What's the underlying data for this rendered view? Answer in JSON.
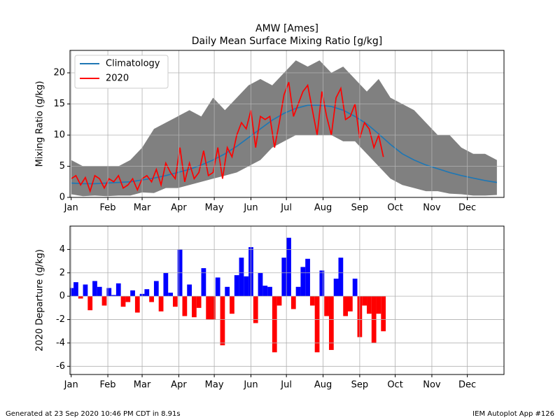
{
  "chart_data": [
    {
      "type": "line",
      "title": "AMW [Ames]",
      "subtitle": "Daily Mean Surface Mixing Ratio [g/kg]",
      "ylabel": "Mixing Ratio (g/kg)",
      "xlim": [
        0,
        367
      ],
      "ylim": [
        0,
        23.6
      ],
      "yticks": [
        0,
        5,
        10,
        15,
        20
      ],
      "xticks": [
        {
          "value": 1,
          "label": "Jan"
        },
        {
          "value": 32,
          "label": "Feb"
        },
        {
          "value": 61,
          "label": "Mar"
        },
        {
          "value": 92,
          "label": "Apr"
        },
        {
          "value": 122,
          "label": "May"
        },
        {
          "value": 153,
          "label": "Jun"
        },
        {
          "value": 183,
          "label": "Jul"
        },
        {
          "value": 214,
          "label": "Aug"
        },
        {
          "value": 245,
          "label": "Sep"
        },
        {
          "value": 275,
          "label": "Oct"
        },
        {
          "value": 306,
          "label": "Nov"
        },
        {
          "value": 336,
          "label": "Dec"
        }
      ],
      "grid": true,
      "legend": "upper left",
      "band": {
        "color": "#808080",
        "x": [
          1,
          11,
          21,
          31,
          41,
          51,
          61,
          71,
          81,
          91,
          101,
          111,
          121,
          131,
          141,
          151,
          161,
          171,
          181,
          191,
          201,
          211,
          221,
          231,
          241,
          251,
          261,
          271,
          281,
          291,
          301,
          311,
          321,
          331,
          341,
          351,
          361
        ],
        "high": [
          6,
          5,
          5,
          5,
          5,
          6,
          8,
          11,
          12,
          13,
          14,
          13,
          16,
          14,
          16,
          18,
          19,
          18,
          20,
          22,
          21,
          22,
          20,
          21,
          19,
          17,
          19,
          16,
          15,
          14,
          12,
          10,
          10,
          8,
          7,
          7,
          6
        ],
        "low": [
          0.5,
          0.2,
          0.3,
          0.2,
          0.3,
          0.3,
          0.8,
          0.7,
          1.5,
          1.5,
          2,
          2.5,
          3,
          3.5,
          4,
          5,
          6,
          8,
          9,
          10,
          10,
          10,
          10,
          9,
          9,
          7,
          5,
          3,
          2,
          1.5,
          1,
          1,
          0.6,
          0.5,
          0.3,
          0.3,
          0.4
        ]
      },
      "series": [
        {
          "name": "Climatology",
          "color": "#1f77b4",
          "x": [
            1,
            11,
            21,
            31,
            41,
            51,
            61,
            71,
            81,
            91,
            101,
            111,
            121,
            131,
            141,
            151,
            161,
            171,
            181,
            191,
            201,
            211,
            221,
            231,
            241,
            251,
            261,
            271,
            281,
            291,
            301,
            311,
            321,
            331,
            341,
            351,
            361
          ],
          "values": [
            2.3,
            2.2,
            2.2,
            2.3,
            2.4,
            2.5,
            2.8,
            3.1,
            3.5,
            4.0,
            4.5,
            5.2,
            6.0,
            7.0,
            8.2,
            9.6,
            11.0,
            12.4,
            13.5,
            14.3,
            14.8,
            14.8,
            14.6,
            14.0,
            13.0,
            11.8,
            10.2,
            8.5,
            7.0,
            6.0,
            5.2,
            4.6,
            4.0,
            3.5,
            3.1,
            2.7,
            2.4
          ]
        },
        {
          "name": "2020",
          "color": "#ff0000",
          "x": [
            1,
            5,
            9,
            13,
            17,
            21,
            25,
            29,
            33,
            37,
            41,
            45,
            49,
            53,
            57,
            61,
            65,
            69,
            73,
            77,
            81,
            85,
            89,
            93,
            97,
            101,
            105,
            109,
            113,
            117,
            121,
            125,
            129,
            133,
            137,
            141,
            145,
            149,
            153,
            157,
            161,
            165,
            169,
            173,
            177,
            181,
            185,
            189,
            193,
            197,
            201,
            205,
            209,
            213,
            217,
            221,
            225,
            229,
            233,
            237,
            241,
            245,
            249,
            253,
            257,
            261,
            265
          ],
          "values": [
            3.0,
            3.5,
            2.0,
            3.2,
            1.0,
            3.5,
            3.0,
            1.5,
            3.0,
            2.5,
            3.5,
            1.5,
            2.0,
            3.0,
            1.2,
            3.0,
            3.5,
            2.5,
            4.5,
            2.0,
            5.5,
            4.0,
            3.0,
            8.0,
            2.5,
            5.5,
            3.0,
            4.0,
            7.5,
            3.5,
            4.0,
            8.0,
            3.0,
            8.0,
            6.5,
            10.0,
            12.0,
            11.0,
            14.0,
            8.0,
            13.0,
            12.5,
            13.0,
            8.0,
            12.0,
            16.5,
            18.5,
            13.0,
            15.0,
            17.0,
            18.0,
            14.0,
            10.0,
            17.0,
            13.0,
            10.0,
            16.0,
            17.5,
            12.5,
            13.0,
            15.0,
            9.5,
            12.0,
            11.0,
            8.0,
            10.0,
            6.5
          ]
        }
      ]
    },
    {
      "type": "bar",
      "ylabel": "2020 Departure (g/kg)",
      "xlim": [
        0,
        367
      ],
      "ylim": [
        -6.7,
        6
      ],
      "yticks": [
        -6,
        -4,
        -2,
        0,
        2,
        4
      ],
      "xticks": [
        {
          "value": 1,
          "label": "Jan"
        },
        {
          "value": 32,
          "label": "Feb"
        },
        {
          "value": 61,
          "label": "Mar"
        },
        {
          "value": 92,
          "label": "Apr"
        },
        {
          "value": 122,
          "label": "May"
        },
        {
          "value": 153,
          "label": "Jun"
        },
        {
          "value": 183,
          "label": "Jul"
        },
        {
          "value": 214,
          "label": "Aug"
        },
        {
          "value": 245,
          "label": "Sep"
        },
        {
          "value": 275,
          "label": "Oct"
        },
        {
          "value": 306,
          "label": "Nov"
        },
        {
          "value": 336,
          "label": "Dec"
        }
      ],
      "grid": true,
      "positive_color": "#0000ff",
      "negative_color": "#ff0000",
      "bar_width": 4,
      "x": [
        1,
        5,
        9,
        13,
        17,
        21,
        25,
        29,
        33,
        37,
        41,
        45,
        49,
        53,
        57,
        61,
        65,
        69,
        73,
        77,
        81,
        85,
        89,
        93,
        97,
        101,
        105,
        109,
        113,
        117,
        121,
        125,
        129,
        133,
        137,
        141,
        145,
        149,
        153,
        157,
        161,
        165,
        169,
        173,
        177,
        181,
        185,
        189,
        193,
        197,
        201,
        205,
        209,
        213,
        217,
        221,
        225,
        229,
        233,
        237,
        241,
        245,
        249,
        253,
        257,
        261,
        265
      ],
      "values": [
        0.7,
        1.2,
        -0.2,
        1.0,
        -1.2,
        1.3,
        0.8,
        -0.8,
        0.7,
        0.1,
        1.1,
        -0.9,
        -0.5,
        0.5,
        -1.4,
        0.2,
        0.6,
        -0.5,
        1.3,
        -1.3,
        2.0,
        0.3,
        -0.9,
        4.0,
        -1.7,
        1.0,
        -1.8,
        -1.0,
        2.4,
        -2.0,
        -2.0,
        1.6,
        -4.2,
        0.8,
        -1.5,
        1.8,
        3.3,
        1.7,
        4.2,
        -2.3,
        2.0,
        0.9,
        0.8,
        -4.8,
        -0.8,
        3.3,
        5.0,
        -1.1,
        0.8,
        2.5,
        3.2,
        -0.8,
        -4.8,
        2.2,
        -1.7,
        -4.6,
        1.5,
        3.3,
        -1.7,
        -1.3,
        1.5,
        -3.5,
        -0.8,
        -1.5,
        -4.0,
        -1.5,
        -3.0
      ]
    }
  ],
  "footer_left": "Generated at 23 Sep 2020 10:46 PM CDT in 8.91s",
  "footer_right": "IEM Autoplot App #126"
}
